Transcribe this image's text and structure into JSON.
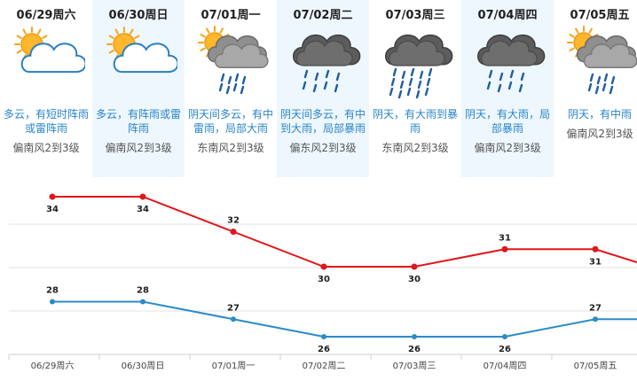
{
  "forecast": [
    {
      "date": "06/29周六",
      "desc": "多云，有短时阵雨或雷阵雨",
      "wind": "偏南风2到3级",
      "icon": "partly-cloudy-sun-icon"
    },
    {
      "date": "06/30周日",
      "desc": "多云，有阵雨或雷阵雨",
      "wind": "偏南风2到3级",
      "icon": "partly-cloudy-sun-icon"
    },
    {
      "date": "07/01周一",
      "desc": "阴天间多云，有中雷雨，局部大雨",
      "wind": "东南风2到3级",
      "icon": "sun-cloud-rain-icon"
    },
    {
      "date": "07/02周二",
      "desc": "阴天间多云，有中到大雨，局部暴雨",
      "wind": "偏东风2到3级",
      "icon": "dark-cloud-rain-icon"
    },
    {
      "date": "07/03周三",
      "desc": "阴天，有大雨到暴雨",
      "wind": "东南风2到3级",
      "icon": "dark-cloud-heavy-rain-icon"
    },
    {
      "date": "07/04周四",
      "desc": "阴天，有大雨，局部暴雨",
      "wind": "偏南风2到3级",
      "icon": "dark-cloud-rain-icon"
    },
    {
      "date": "07/05周五",
      "desc": "阴天，有中雨",
      "wind": "偏南风2到3级",
      "icon": "sun-cloud-rain-icon"
    }
  ],
  "chart_data": {
    "type": "line",
    "categories": [
      "06/29周六",
      "06/30周日",
      "07/01周一",
      "07/02周二",
      "07/03周三",
      "07/04周四",
      "07/05周五"
    ],
    "series": [
      {
        "values": [
          34,
          34,
          32,
          30,
          30,
          31,
          31
        ],
        "color": "#e0151b"
      },
      {
        "values": [
          28,
          28,
          27,
          26,
          26,
          26,
          27
        ],
        "color": "#2b8bc6"
      }
    ],
    "trailing_points": {
      "high": 30.25,
      "low": 27
    },
    "grid": true
  }
}
